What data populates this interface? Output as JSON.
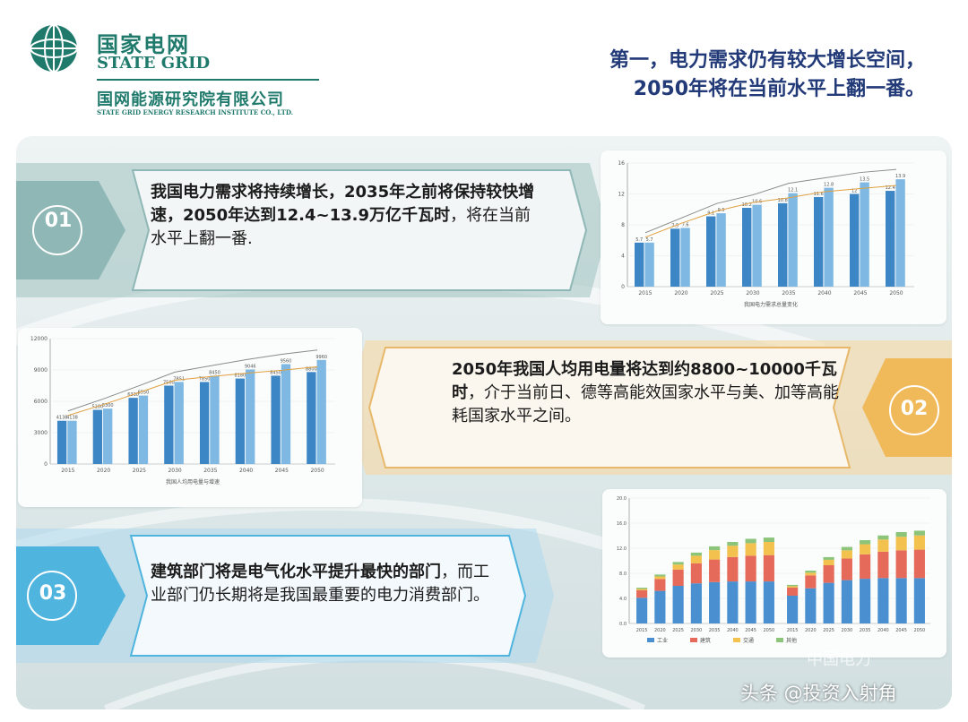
{
  "header": {
    "logo_cn": "国家电网",
    "logo_en": "STATE GRID",
    "institute_cn": "国网能源研究院有限公司",
    "institute_en": "STATE GRID ENERGY RESEARCH INSTITUTE CO., LTD.",
    "title_line1": "第一，电力需求仍有较大增长空间，",
    "title_line2": "2050年将在当前水平上翻一番。"
  },
  "points": [
    {
      "number": "01",
      "bold": "我国电力需求将持续增长，2035年之前将保持较快增速，2050年达到12.4~13.9万亿千瓦时",
      "normal": "，将在当前水平上翻一番."
    },
    {
      "number": "02",
      "bold": "2050年我国人均用电量将达到约8800~10000千瓦时",
      "normal": "，介于当前日、德等高能效国家水平与美、加等高能耗国家水平之间。"
    },
    {
      "number": "03",
      "bold": "建筑部门将是电气化水平提升最快的部门",
      "normal": "，而工业部门仍长期将是我国最重要的电力消费部门。"
    }
  ],
  "chart_data": [
    {
      "type": "bar",
      "categories": [
        "2015",
        "2020",
        "2025",
        "2030",
        "2035",
        "2040",
        "2045",
        "2050"
      ],
      "series": [
        {
          "values": [
            5.7,
            7.5,
            9.1,
            10.2,
            10.8,
            11.6,
            12.0,
            12.4
          ]
        },
        {
          "values": [
            5.7,
            7.6,
            9.5,
            10.6,
            12.1,
            12.8,
            13.5,
            13.9
          ]
        }
      ],
      "ylim": [
        0,
        16
      ],
      "y2lim": [
        -1,
        7
      ],
      "caption": "我国电力需求总量变化"
    },
    {
      "type": "bar",
      "categories": [
        "2015",
        "2020",
        "2025",
        "2030",
        "2035",
        "2040",
        "2045",
        "2050"
      ],
      "series": [
        {
          "values": [
            4138,
            5180,
            6330,
            7500,
            7850,
            8180,
            8450,
            8800
          ]
        },
        {
          "values": [
            4138,
            5300,
            6550,
            7851,
            8450,
            9046,
            9560,
            9960
          ]
        }
      ],
      "ylim": [
        0,
        12000
      ],
      "y2lim": [
        0,
        6
      ],
      "caption": "我国人均用电量与增速"
    },
    {
      "type": "bar",
      "categories": [
        "2015",
        "2020",
        "2025",
        "2030",
        "2035",
        "2040",
        "2045",
        "2050"
      ],
      "series": [
        {
          "name": "工业",
          "values": [
            4.1,
            5.2,
            6.0,
            6.4,
            6.6,
            6.7,
            6.7,
            6.7
          ]
        },
        {
          "name": "建筑",
          "values": [
            1.2,
            1.9,
            2.6,
            3.2,
            3.6,
            3.9,
            4.1,
            4.2
          ]
        },
        {
          "name": "交通",
          "values": [
            0.2,
            0.4,
            0.8,
            1.2,
            1.5,
            1.8,
            2.0,
            2.1
          ]
        },
        {
          "name": "其他",
          "values": [
            0.2,
            0.3,
            0.4,
            0.5,
            0.6,
            0.6,
            0.7,
            0.7
          ]
        }
      ],
      "ylim": [
        0,
        20
      ]
    }
  ],
  "colors": {
    "title": "#223a78",
    "brand": "#1f7a6c",
    "band_teal": "#8fb7b5",
    "band_orange": "#f0b95a",
    "band_blue": "#4fb4de",
    "bar": "#3d86c6"
  },
  "watermark": "头条 @投资入射角",
  "watermark2": "中国电力"
}
